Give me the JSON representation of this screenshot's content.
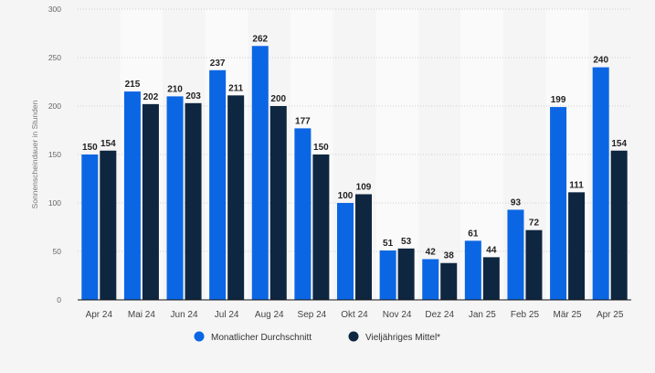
{
  "chart_data": {
    "type": "bar",
    "title": "",
    "xlabel": "",
    "ylabel": "Sonnenscheindauer in Stunden",
    "ylim": [
      0,
      300
    ],
    "yticks": [
      0,
      50,
      100,
      150,
      200,
      250,
      300
    ],
    "grid": true,
    "legend_position": "bottom",
    "categories": [
      "Apr 24",
      "Mai 24",
      "Jun 24",
      "Jul 24",
      "Aug 24",
      "Sep 24",
      "Okt 24",
      "Nov 24",
      "Dez 24",
      "Jan 25",
      "Feb 25",
      "Mär 25",
      "Apr 25"
    ],
    "series": [
      {
        "name": "Monatlicher Durchschnitt",
        "color": "#0b66e4",
        "values": [
          150,
          215,
          210,
          237,
          262,
          177,
          100,
          51,
          42,
          61,
          93,
          199,
          240
        ]
      },
      {
        "name": "Vieljähriges Mittel*",
        "color": "#0f2640",
        "values": [
          154,
          202,
          203,
          211,
          200,
          150,
          109,
          53,
          38,
          44,
          72,
          111,
          154
        ]
      }
    ]
  }
}
